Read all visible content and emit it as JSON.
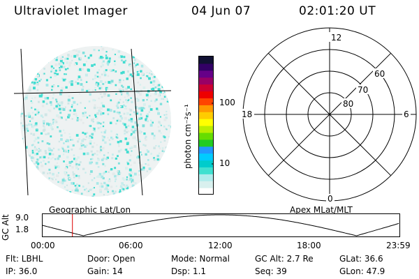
{
  "header": {
    "instrument": "Ultraviolet Imager",
    "date": "04 Jun 07",
    "time": "02:01:20 UT"
  },
  "colorbar": {
    "unit_label": "photon cm⁻²s⁻¹",
    "ticks": [
      "100",
      "10"
    ],
    "colors": [
      "#ffffff",
      "#d8f0ee",
      "#b0ecec",
      "#40e0d0",
      "#00cccc",
      "#00ccff",
      "#2299ff",
      "#22cc22",
      "#66dd00",
      "#bbee00",
      "#ffff00",
      "#ffcc00",
      "#ff9900",
      "#ff4400",
      "#ee0000",
      "#cc0033",
      "#990066",
      "#660088",
      "#330066",
      "#111133"
    ]
  },
  "left_panel": {
    "title": "Geographic Lat/Lon"
  },
  "right_panel": {
    "title": "Apex  MLat/MLT",
    "mlt_labels": {
      "top": "12",
      "left": "18",
      "right": "6",
      "bottom": "0"
    },
    "lat_labels": [
      "60",
      "70",
      "80"
    ]
  },
  "orbit": {
    "ylabel": "GC Alt",
    "yticks": [
      "9.0",
      "1.8"
    ],
    "xticks": [
      "00:00",
      "06:00",
      "12:00",
      "18:00",
      "23:59"
    ],
    "marker_time": "02:01:20"
  },
  "info": {
    "flt": "Flt: LBHL",
    "ip": "IP: 36.0",
    "door": "Door: Open",
    "gain": "Gain: 14",
    "mode": "Mode: Normal",
    "dsp": "Dsp:    1.1",
    "gc_alt": "GC Alt: 2.7 Re",
    "seq": "Seq: 39",
    "glat": "GLat:  36.6",
    "glon": "GLon:  47.9"
  }
}
